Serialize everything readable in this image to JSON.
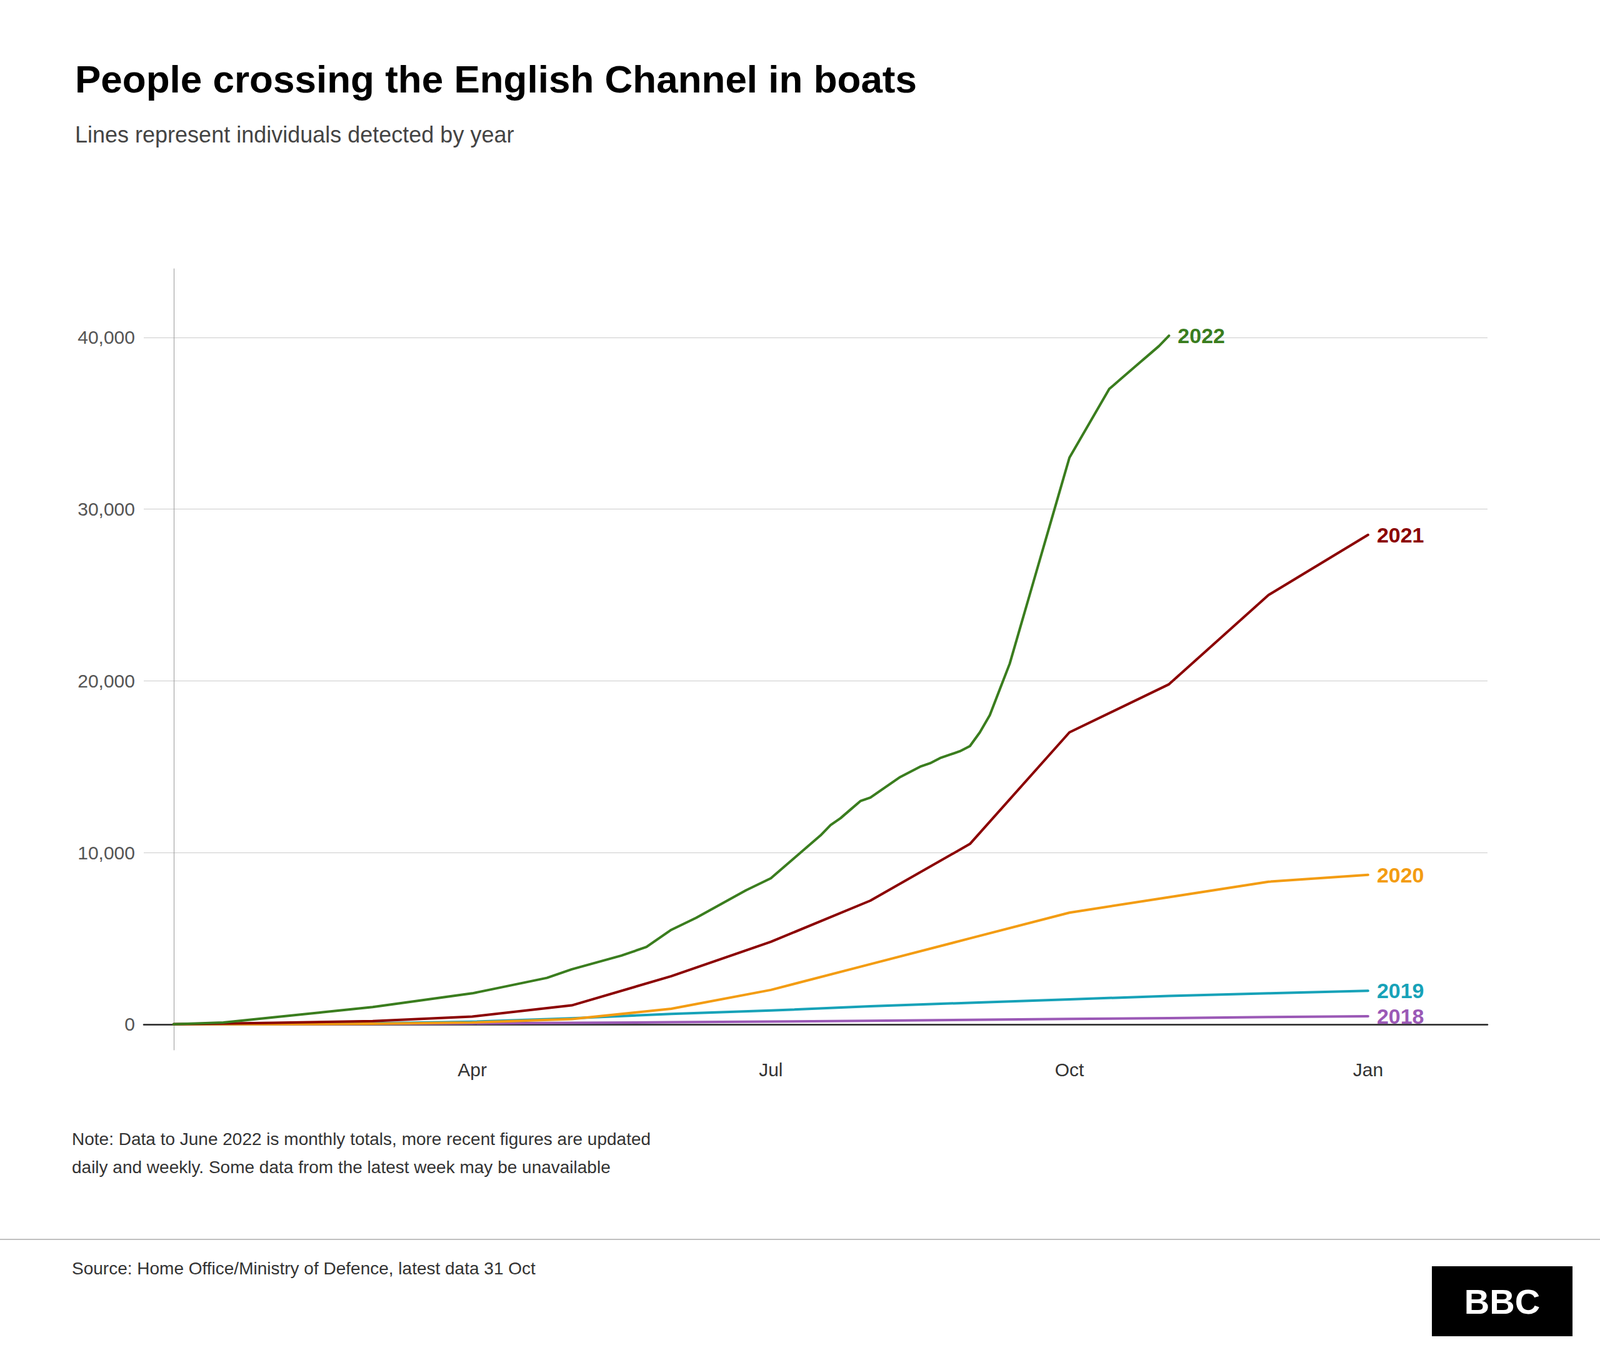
{
  "chart_data": {
    "type": "line",
    "title": "People crossing the English Channel in boats",
    "subtitle": "Lines represent individuals detected by year",
    "note": "Note: Data to June 2022 is monthly totals, more recent figures are updated\ndaily and weekly. Some data from the latest week may be unavailable",
    "source": "Source: Home Office/Ministry of Defence, latest data 31 Oct",
    "logo": "BBC",
    "grid": true,
    "xlim": [
      -0.3,
      13.2
    ],
    "xticks": [
      {
        "value": 3,
        "label": "Apr"
      },
      {
        "value": 6,
        "label": "Jul"
      },
      {
        "value": 9,
        "label": "Oct"
      },
      {
        "value": 12,
        "label": "Jan"
      }
    ],
    "ylim": [
      -1500,
      44000
    ],
    "yticks": [
      0,
      {
        "value": 10000,
        "label": "10,000"
      },
      {
        "value": 20000,
        "label": "20,000"
      },
      {
        "value": 30000,
        "label": "30,000"
      },
      {
        "value": 40000,
        "label": "40,000"
      }
    ],
    "series": [
      {
        "name": "2018",
        "color": "#9b59b6",
        "x": [
          0.0,
          0.5,
          1.0,
          2.0,
          3.0,
          4.0,
          5.0,
          6.0,
          7.0,
          8.0,
          9.0,
          10.0,
          11.0,
          12.0
        ],
        "values": [
          0,
          0,
          5,
          20,
          50,
          80,
          120,
          160,
          200,
          260,
          310,
          360,
          420,
          470
        ]
      },
      {
        "name": "2019",
        "color": "#17a2b8",
        "x": [
          0.0,
          1.0,
          2.0,
          3.0,
          4.0,
          5.0,
          6.0,
          7.0,
          8.0,
          9.0,
          10.0,
          11.0,
          12.0
        ],
        "values": [
          0,
          20,
          60,
          150,
          350,
          600,
          800,
          1050,
          1250,
          1450,
          1650,
          1800,
          1950
        ]
      },
      {
        "name": "2020",
        "color": "#f39c12",
        "x": [
          0.0,
          1.0,
          2.0,
          3.0,
          4.0,
          5.0,
          6.0,
          7.0,
          8.0,
          9.0,
          10.0,
          11.0,
          12.0
        ],
        "values": [
          0,
          0,
          30,
          100,
          300,
          900,
          2000,
          3500,
          5000,
          6500,
          7400,
          8300,
          8700
        ]
      },
      {
        "name": "2021",
        "color": "#8b0000",
        "x": [
          0.0,
          1.0,
          2.0,
          3.0,
          4.0,
          5.0,
          6.0,
          7.0,
          8.0,
          9.0,
          10.0,
          11.0,
          12.0
        ],
        "values": [
          0,
          80,
          180,
          450,
          1100,
          2800,
          4800,
          7200,
          10500,
          17000,
          19800,
          25000,
          28500
        ]
      },
      {
        "name": "2022",
        "color": "#3a7d1e",
        "x": [
          0.0,
          0.5,
          1.0,
          1.5,
          2.0,
          2.5,
          3.0,
          3.25,
          3.5,
          3.75,
          4.0,
          4.25,
          4.5,
          4.75,
          5.0,
          5.25,
          5.5,
          5.75,
          6.0,
          6.1,
          6.2,
          6.3,
          6.4,
          6.5,
          6.6,
          6.7,
          6.8,
          6.9,
          7.0,
          7.1,
          7.2,
          7.3,
          7.4,
          7.5,
          7.6,
          7.7,
          7.8,
          7.9,
          8.0,
          8.1,
          8.2,
          8.3,
          8.4,
          8.5,
          8.6,
          8.7,
          8.8,
          8.9,
          9.0,
          9.1,
          9.2,
          9.3,
          9.4,
          9.5,
          9.6,
          9.7,
          9.8,
          9.9,
          9.95,
          10.0
        ],
        "values": [
          0,
          100,
          400,
          700,
          1000,
          1400,
          1800,
          2100,
          2400,
          2700,
          3200,
          3600,
          4000,
          4500,
          5500,
          6200,
          7000,
          7800,
          8500,
          9000,
          9500,
          10000,
          10500,
          11000,
          11600,
          12000,
          12500,
          13000,
          13200,
          13600,
          14000,
          14400,
          14700,
          15000,
          15200,
          15500,
          15700,
          15900,
          16200,
          17000,
          18000,
          19500,
          21000,
          23000,
          25000,
          27000,
          29000,
          31000,
          33000,
          34000,
          35000,
          36000,
          37000,
          37500,
          38000,
          38500,
          39000,
          39500,
          39800,
          40100
        ]
      }
    ]
  }
}
